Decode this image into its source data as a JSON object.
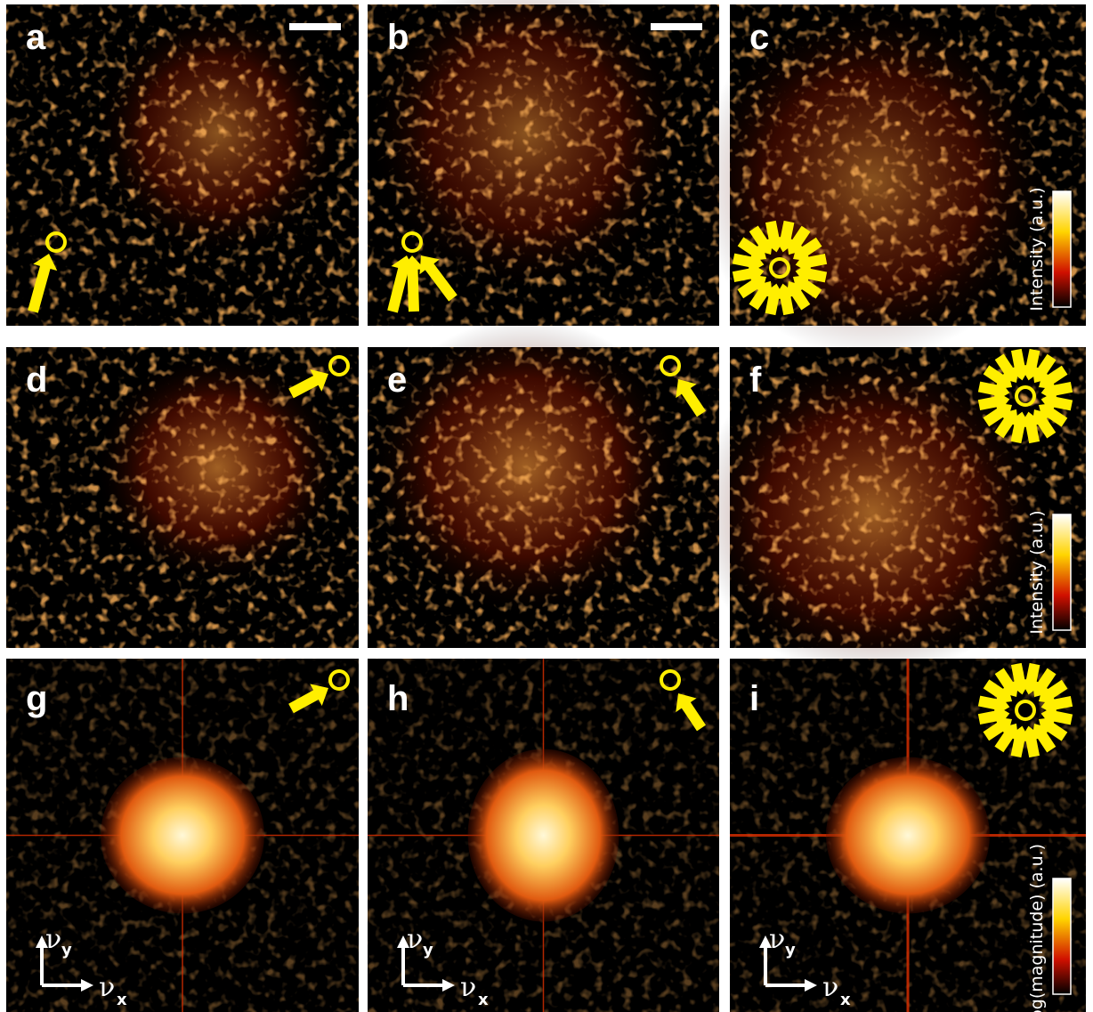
{
  "panels": [
    {
      "label": "a"
    },
    {
      "label": "b"
    },
    {
      "label": "c",
      "colorbar": "Intensity (a.u.)"
    },
    {
      "label": "d"
    },
    {
      "label": "e"
    },
    {
      "label": "f",
      "colorbar": "Intensity (a.u.)"
    },
    {
      "label": "g"
    },
    {
      "label": "h"
    },
    {
      "label": "i",
      "colorbar": "Log(magnitude) (a.u.)"
    }
  ],
  "axes": {
    "symbol": "ν",
    "x": "x",
    "y": "y"
  }
}
